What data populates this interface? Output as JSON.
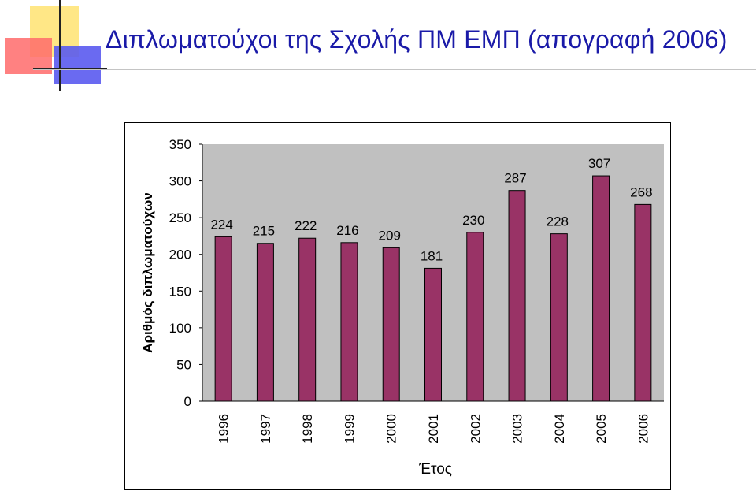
{
  "slide": {
    "title": "Διπλωματούχοι της Σχολής ΠΜ ΕΜΠ (απογραφή 2006)"
  },
  "colors": {
    "title": "#1a1aa8",
    "bar": "#993366",
    "plot_area": "#c0c0c0"
  },
  "chart_data": {
    "type": "bar",
    "title": "",
    "xlabel": "Έτος",
    "ylabel": "Αριθμός διπλωματούχων",
    "categories": [
      "1996",
      "1997",
      "1998",
      "1999",
      "2000",
      "2001",
      "2002",
      "2003",
      "2004",
      "2005",
      "2006"
    ],
    "values": [
      224,
      215,
      222,
      216,
      209,
      181,
      230,
      287,
      228,
      307,
      268
    ],
    "ylim": [
      0,
      350
    ],
    "yticks": [
      "0",
      "50",
      "100",
      "150",
      "200",
      "250",
      "300",
      "350"
    ],
    "grid": false,
    "legend": "none"
  }
}
